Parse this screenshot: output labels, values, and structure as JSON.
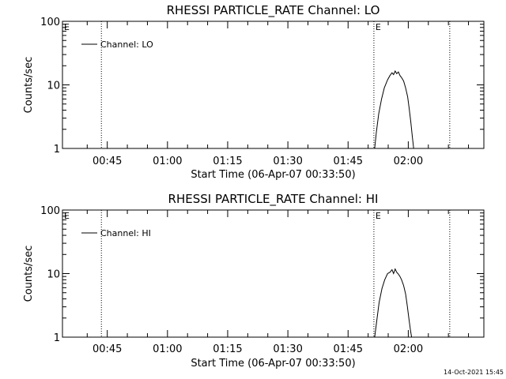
{
  "chart_data": [
    {
      "type": "line",
      "title": "RHESSI PARTICLE_RATE Channel: LO",
      "xlabel": "Start Time (06-Apr-07 00:33:50)",
      "ylabel": "Counts/sec",
      "yscale": "log",
      "ylim": [
        1,
        100
      ],
      "ytick_labels": [
        "1",
        "10",
        "100"
      ],
      "xtick_labels": [
        "00:45",
        "01:00",
        "01:15",
        "01:30",
        "01:45",
        "02:00"
      ],
      "x_unit": "minutes after 00:33:50",
      "xlim": [
        0,
        105
      ],
      "grid": false,
      "legend_position": "upper-left",
      "series": [
        {
          "name": "Channel: LO",
          "x": [
            77.8,
            78.2,
            78.8,
            79.5,
            80.2,
            81.0,
            81.6,
            82.1,
            82.5,
            82.9,
            83.3,
            83.7,
            84.1,
            84.5,
            85.0,
            85.5,
            86.0,
            86.4,
            86.8,
            87.2,
            87.5
          ],
          "y": [
            1.0,
            1.8,
            3.5,
            6.0,
            9.0,
            12.0,
            14.0,
            15.5,
            14.5,
            16.5,
            15.0,
            16.0,
            14.0,
            13.0,
            11.5,
            9.0,
            6.5,
            4.2,
            2.6,
            1.5,
            1.0
          ]
        }
      ],
      "markers": [
        {
          "x": 9.7,
          "label": ""
        },
        {
          "x": 77.6,
          "label": "E"
        },
        {
          "x": 96.5,
          "label": ""
        }
      ],
      "corner_label": "E"
    },
    {
      "type": "line",
      "title": "RHESSI PARTICLE_RATE Channel: HI",
      "xlabel": "Start Time (06-Apr-07 00:33:50)",
      "ylabel": "Counts/sec",
      "yscale": "log",
      "ylim": [
        1,
        100
      ],
      "ytick_labels": [
        "1",
        "10",
        "100"
      ],
      "xtick_labels": [
        "00:45",
        "01:00",
        "01:15",
        "01:30",
        "01:45",
        "02:00"
      ],
      "x_unit": "minutes after 00:33:50",
      "xlim": [
        0,
        105
      ],
      "grid": false,
      "legend_position": "upper-left",
      "series": [
        {
          "name": "Channel: HI",
          "x": [
            77.8,
            78.3,
            78.9,
            79.6,
            80.3,
            81.0,
            81.6,
            82.1,
            82.5,
            82.9,
            83.3,
            83.7,
            84.1,
            84.5,
            85.0,
            85.5,
            85.9,
            86.3,
            86.7,
            87.0
          ],
          "y": [
            1.0,
            1.8,
            3.5,
            5.8,
            8.0,
            10.0,
            10.5,
            11.5,
            10.0,
            11.8,
            10.5,
            9.8,
            9.0,
            8.0,
            6.5,
            4.8,
            3.2,
            2.0,
            1.3,
            1.0
          ]
        }
      ],
      "markers": [
        {
          "x": 9.7,
          "label": ""
        },
        {
          "x": 77.6,
          "label": "E"
        },
        {
          "x": 96.5,
          "label": ""
        }
      ],
      "corner_label": "E"
    }
  ],
  "timestamp": "14-Oct-2021 15:45"
}
